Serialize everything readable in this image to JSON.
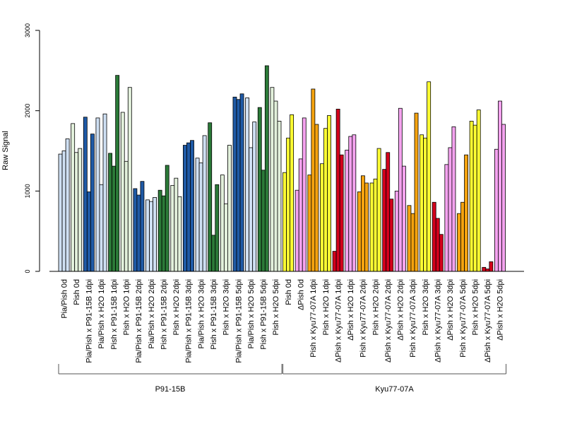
{
  "chart_data": {
    "type": "bar",
    "ylabel": "Raw Signal",
    "ylim": [
      0,
      3000
    ],
    "yticks": [
      0,
      1000,
      2000,
      3000
    ],
    "colors": {
      "light_blue": "#cfe0f3",
      "light_green": "#e3f1dc",
      "dark_blue": "#1f5aa6",
      "dark_green": "#2b7a38",
      "yellow": "#ffff33",
      "pink": "#f5a3f0",
      "orange": "#f5a30f",
      "red": "#d4001c"
    },
    "categories": [
      {
        "label": "Pia/Pish 0d",
        "color": "light_blue",
        "values": [
          1460,
          1500,
          1650
        ]
      },
      {
        "label": "Pish 0d",
        "color": "light_green",
        "values": [
          1840,
          1480,
          1530
        ]
      },
      {
        "label": "Pia/Pish x P91-15B 1dpi",
        "color": "dark_blue",
        "values": [
          1920,
          990,
          1710
        ]
      },
      {
        "label": "Pia/Pish x H2O 1dpi",
        "color": "light_blue",
        "values": [
          1910,
          1080,
          1960
        ]
      },
      {
        "label": "Pish x P91-15B 1dpi",
        "color": "dark_green",
        "values": [
          1470,
          1310,
          2440
        ]
      },
      {
        "label": "Pish x H2O 1dpi",
        "color": "light_green",
        "values": [
          1980,
          1370,
          2290
        ]
      },
      {
        "label": "Pia/Pish x P91-15B 2dpi",
        "color": "dark_blue",
        "values": [
          1030,
          950,
          1120
        ]
      },
      {
        "label": "Pia/Pish x H2O 2dpi",
        "color": "light_blue",
        "values": [
          890,
          870,
          920
        ]
      },
      {
        "label": "Pish x P91-15B 2dpi",
        "color": "dark_green",
        "values": [
          1010,
          940,
          1320
        ]
      },
      {
        "label": "Pish x H2O 2dpi",
        "color": "light_green",
        "values": [
          1070,
          1160,
          930
        ]
      },
      {
        "label": "Pia/Pish x P91-15B 3dpi",
        "color": "dark_blue",
        "values": [
          1570,
          1600,
          1630
        ]
      },
      {
        "label": "Pia/Pish x H2O 3dpi",
        "color": "light_blue",
        "values": [
          1410,
          1350,
          1690
        ]
      },
      {
        "label": "Pish x P91-15B 3dpi",
        "color": "dark_green",
        "values": [
          1850,
          450,
          1080
        ]
      },
      {
        "label": "Pish x H2O 3dpi",
        "color": "light_green",
        "values": [
          1200,
          840,
          1570
        ]
      },
      {
        "label": "Pia/Pish x P91-15B 5dpi",
        "color": "dark_blue",
        "values": [
          2170,
          2140,
          2210
        ]
      },
      {
        "label": "Pia/Pish x H2O 5dpi",
        "color": "light_blue",
        "values": [
          2160,
          1540,
          1860
        ]
      },
      {
        "label": "Pish x P91-15B 5dpi",
        "color": "dark_green",
        "values": [
          2040,
          1260,
          2560
        ]
      },
      {
        "label": "Pish x H2O 5dpi",
        "color": "light_green",
        "values": [
          2290,
          2120,
          1870
        ]
      },
      {
        "label": "Pish 0d",
        "color": "yellow",
        "values": [
          1230,
          1660,
          1950
        ]
      },
      {
        "label": "ΔPish 0d",
        "color": "pink",
        "values": [
          1010,
          1400,
          1910
        ]
      },
      {
        "label": "Pish x Kyu77-07A 1dpi",
        "color": "orange",
        "values": [
          1200,
          2270,
          1830
        ]
      },
      {
        "label": "Pish x H2O 1dpi",
        "color": "yellow",
        "values": [
          1340,
          1780,
          1940
        ]
      },
      {
        "label": "ΔPish x Kyu77-07A 1dpi",
        "color": "red",
        "values": [
          250,
          2020,
          1450
        ]
      },
      {
        "label": "ΔPish x H2O 1dpi",
        "color": "pink",
        "values": [
          1510,
          1680,
          1700
        ]
      },
      {
        "label": "Pish x Kyu77-07A 2dpi",
        "color": "orange",
        "values": [
          990,
          1190,
          1100
        ]
      },
      {
        "label": "Pish x H2O 2dpi",
        "color": "yellow",
        "values": [
          1100,
          1150,
          1530
        ]
      },
      {
        "label": "ΔPish x Kyu77-07A 2dpi",
        "color": "red",
        "values": [
          1270,
          1480,
          900
        ]
      },
      {
        "label": "ΔPish x H2O 2dpi",
        "color": "pink",
        "values": [
          1000,
          2030,
          1310
        ]
      },
      {
        "label": "Pish x Kyu77-07A 3dpi",
        "color": "orange",
        "values": [
          820,
          720,
          1970
        ]
      },
      {
        "label": "Pish x H2O 3dpi",
        "color": "yellow",
        "values": [
          1700,
          1660,
          2360
        ]
      },
      {
        "label": "ΔPish x Kyu77-07A 3dpi",
        "color": "red",
        "values": [
          860,
          660,
          460
        ]
      },
      {
        "label": "ΔPish x H2O 3dpi",
        "color": "pink",
        "values": [
          1330,
          1540,
          1800
        ]
      },
      {
        "label": "Pish x Kyu77-07A 5dpi",
        "color": "orange",
        "values": [
          720,
          860,
          1450
        ]
      },
      {
        "label": "Pish x H2O 5dpi",
        "color": "yellow",
        "values": [
          1870,
          1820,
          2010
        ]
      },
      {
        "label": "ΔPish x Kyu77-07A 5dpi",
        "color": "red",
        "values": [
          50,
          30,
          120
        ]
      },
      {
        "label": "ΔPish x H2O 5dpi",
        "color": "pink",
        "values": [
          1520,
          2120,
          1830
        ]
      }
    ],
    "groups": [
      {
        "label": "P91-15B",
        "from": 0,
        "to": 17
      },
      {
        "label": "Kyu77-07A",
        "from": 18,
        "to": 35
      }
    ]
  }
}
